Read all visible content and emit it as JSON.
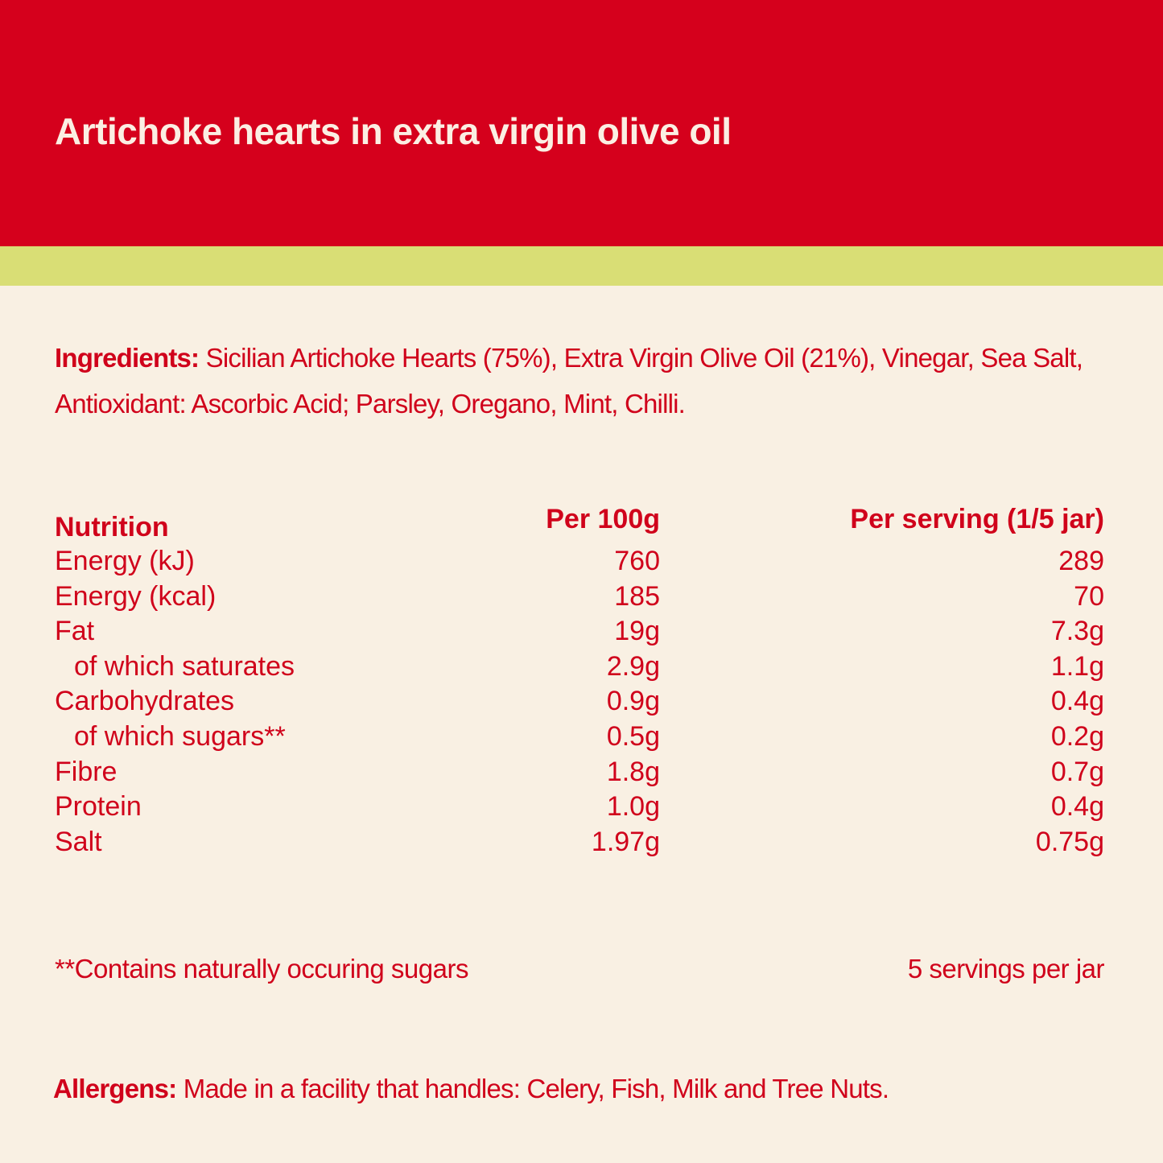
{
  "title": "Artichoke hearts in extra virgin olive oil",
  "colors": {
    "header": "#D5001C",
    "band": "#D9DE75",
    "background": "#F9F0E3",
    "text": "#D0021B"
  },
  "ingredients": {
    "label": "Ingredients:",
    "text": "Sicilian Artichoke Hearts (75%), Extra Virgin Olive Oil (21%), Vinegar, Sea Salt, Antioxidant: Ascorbic Acid; Parsley, Oregano, Mint, Chilli."
  },
  "nutrition": {
    "headers": [
      "Nutrition",
      "Per 100g",
      "Per serving (1/5 jar)"
    ],
    "rows": [
      [
        "Energy (kJ)",
        "760",
        "289"
      ],
      [
        "Energy (kcal)",
        "185",
        "70"
      ],
      [
        "Fat",
        "19g",
        "7.3g"
      ],
      [
        "of which saturates",
        "2.9g",
        "1.1g"
      ],
      [
        "Carbohydrates",
        "0.9g",
        "0.4g"
      ],
      [
        "of which sugars**",
        "0.5g",
        "0.2g"
      ],
      [
        "Fibre",
        "1.8g",
        "0.7g"
      ],
      [
        "Protein",
        "1.0g",
        "0.4g"
      ],
      [
        "Salt",
        "1.97g",
        "0.75g"
      ]
    ]
  },
  "footnote": "**Contains naturally occuring sugars",
  "servings": "5 servings per jar",
  "allergens": {
    "label": "Allergens:",
    "text": "Made in a facility that handles: Celery, Fish, Milk and Tree Nuts."
  }
}
